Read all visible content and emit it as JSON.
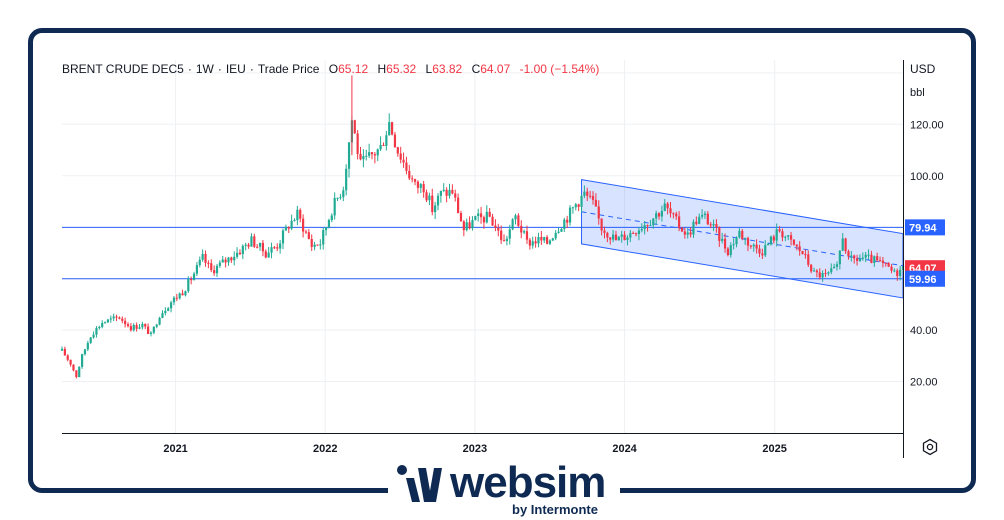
{
  "legend": {
    "symbol": "BRENT CRUDE DEC5",
    "interval": "1W",
    "exchange": "IEU",
    "price_type": "Trade Price",
    "open_key": "O",
    "open": "65.12",
    "high_key": "H",
    "high": "65.32",
    "low_key": "L",
    "low": "63.82",
    "close_key": "C",
    "close": "64.07",
    "change": "-1.00 (−1.54%)"
  },
  "axis": {
    "currency": "USD",
    "unit": "bbl"
  },
  "badges": {
    "upper_line": "79.94",
    "last_price": "64.07",
    "lower_line": "59.96"
  },
  "logo": {
    "name": "websim",
    "tagline": "by Intermonte"
  },
  "colors": {
    "up": "#22ab94",
    "down": "#f23645",
    "line_blue": "#2962ff",
    "frame": "#0f2a52"
  },
  "chart_data": {
    "type": "candlestick",
    "title": "BRENT CRUDE DEC5 · 1W · IEU",
    "ylim": [
      0,
      145
    ],
    "xlim": [
      "2020-03-30",
      "2025-11-10"
    ],
    "y_ticks": [
      "20.00",
      "40.00",
      "60.00",
      "80.00",
      "100.00",
      "120.00"
    ],
    "y_tick_values": [
      20,
      40,
      60,
      80,
      100,
      120
    ],
    "x_ticks": [
      "2021",
      "2022",
      "2023",
      "2024",
      "2025"
    ],
    "x_tick_dates": [
      "2021-01-01",
      "2022-01-01",
      "2023-01-01",
      "2024-01-01",
      "2025-01-01"
    ],
    "horizontal_lines": [
      79.94,
      59.96
    ],
    "channel": {
      "start": "2023-09-18",
      "end": "2025-11-10",
      "upper": [
        98.5,
        77.5
      ],
      "lower": [
        73.5,
        52.5
      ]
    },
    "anchors": [
      [
        "2020-03-30",
        32
      ],
      [
        "2020-04-20",
        27
      ],
      [
        "2020-05-04",
        22
      ],
      [
        "2020-05-18",
        30
      ],
      [
        "2020-06-08",
        38
      ],
      [
        "2020-07-06",
        43
      ],
      [
        "2020-08-17",
        45
      ],
      [
        "2020-09-14",
        41
      ],
      [
        "2020-10-12",
        42
      ],
      [
        "2020-11-02",
        38
      ],
      [
        "2020-11-23",
        46
      ],
      [
        "2020-12-21",
        51
      ],
      [
        "2021-01-18",
        55
      ],
      [
        "2021-02-08",
        60
      ],
      [
        "2021-03-08",
        68
      ],
      [
        "2021-03-29",
        63
      ],
      [
        "2021-05-03",
        67
      ],
      [
        "2021-06-07",
        71
      ],
      [
        "2021-07-05",
        75
      ],
      [
        "2021-08-09",
        70
      ],
      [
        "2021-09-06",
        73
      ],
      [
        "2021-10-04",
        81
      ],
      [
        "2021-10-25",
        85
      ],
      [
        "2021-11-29",
        73
      ],
      [
        "2021-12-20",
        74
      ],
      [
        "2022-01-17",
        87
      ],
      [
        "2022-02-14",
        96
      ],
      [
        "2022-03-07",
        122
      ],
      [
        "2022-03-28",
        104
      ],
      [
        "2022-04-18",
        107
      ],
      [
        "2022-05-16",
        111
      ],
      [
        "2022-06-06",
        121
      ],
      [
        "2022-06-27",
        110
      ],
      [
        "2022-07-18",
        103
      ],
      [
        "2022-08-08",
        96
      ],
      [
        "2022-08-29",
        96
      ],
      [
        "2022-09-19",
        87
      ],
      [
        "2022-10-10",
        93
      ],
      [
        "2022-11-07",
        94
      ],
      [
        "2022-12-05",
        79
      ],
      [
        "2023-01-02",
        83
      ],
      [
        "2023-02-06",
        84
      ],
      [
        "2023-03-13",
        74
      ],
      [
        "2023-04-10",
        84
      ],
      [
        "2023-05-08",
        74
      ],
      [
        "2023-06-05",
        75
      ],
      [
        "2023-06-26",
        74
      ],
      [
        "2023-07-17",
        79
      ],
      [
        "2023-08-14",
        84
      ],
      [
        "2023-09-04",
        89
      ],
      [
        "2023-09-25",
        93
      ],
      [
        "2023-10-16",
        89
      ],
      [
        "2023-11-06",
        80
      ],
      [
        "2023-12-11",
        75
      ],
      [
        "2024-01-08",
        77
      ],
      [
        "2024-02-05",
        80
      ],
      [
        "2024-03-04",
        83
      ],
      [
        "2024-04-08",
        88
      ],
      [
        "2024-05-06",
        82
      ],
      [
        "2024-06-03",
        77
      ],
      [
        "2024-06-24",
        83
      ],
      [
        "2024-07-15",
        84
      ],
      [
        "2024-08-12",
        78
      ],
      [
        "2024-09-09",
        71
      ],
      [
        "2024-10-07",
        78
      ],
      [
        "2024-11-04",
        73
      ],
      [
        "2024-12-02",
        71
      ],
      [
        "2025-01-13",
        79
      ],
      [
        "2025-02-10",
        74
      ],
      [
        "2025-03-10",
        70
      ],
      [
        "2025-04-07",
        62
      ],
      [
        "2025-05-05",
        61
      ],
      [
        "2025-06-02",
        64
      ],
      [
        "2025-06-16",
        77
      ],
      [
        "2025-06-30",
        67
      ],
      [
        "2025-08-04",
        68
      ],
      [
        "2025-09-01",
        67
      ],
      [
        "2025-10-06",
        64
      ],
      [
        "2025-10-20",
        62
      ],
      [
        "2025-11-10",
        64
      ]
    ]
  }
}
